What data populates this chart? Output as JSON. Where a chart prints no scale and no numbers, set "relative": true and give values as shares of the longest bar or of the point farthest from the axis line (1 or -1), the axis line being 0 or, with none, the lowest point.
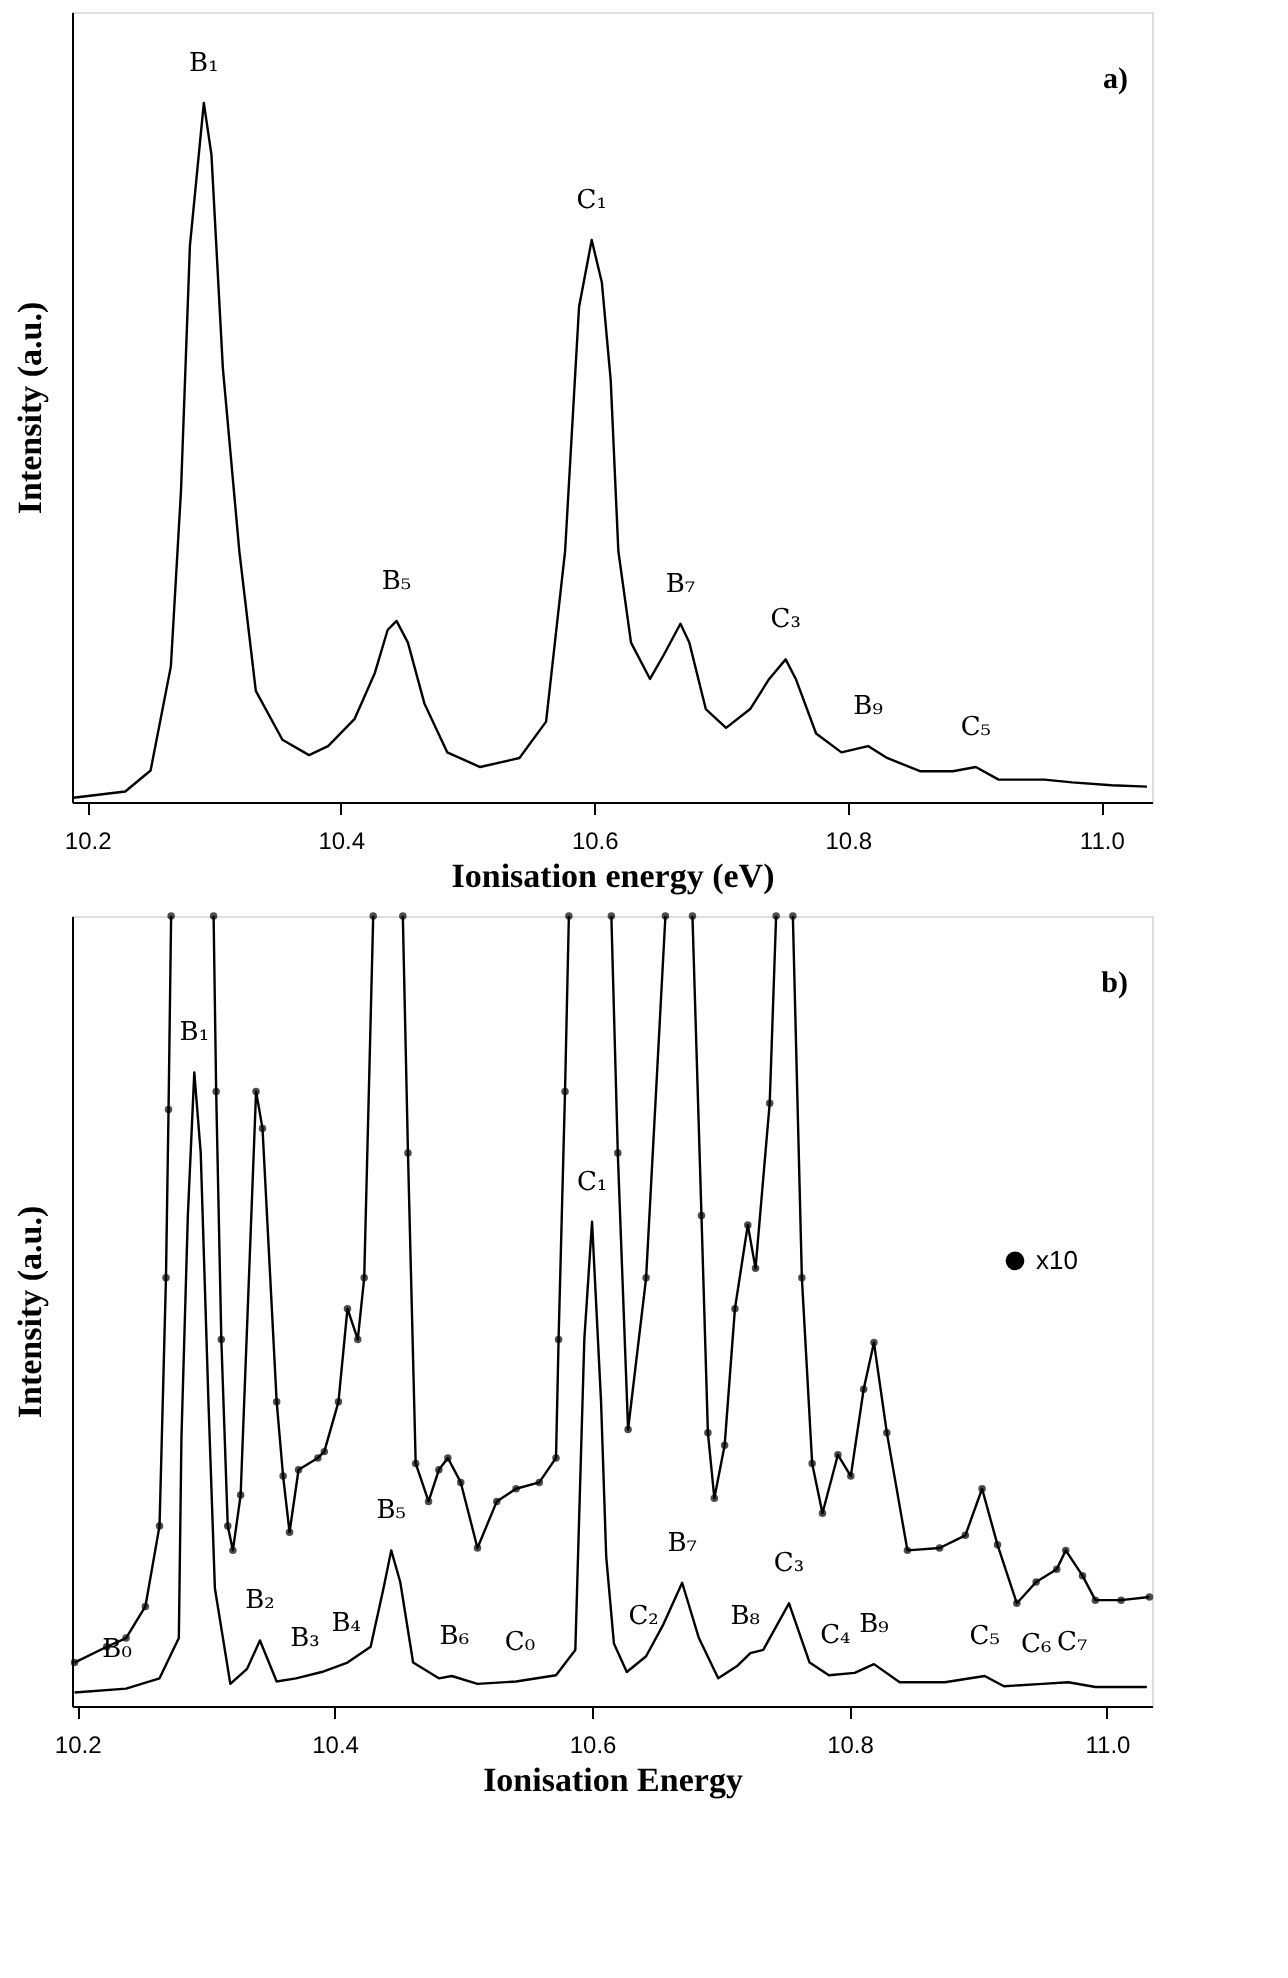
{
  "chart_data": [
    {
      "type": "line",
      "xlabel": "Ionisation energy (eV)",
      "ylabel": "Intensity (a.u.)",
      "relative": true,
      "xlim": [
        10.188,
        11.04
      ],
      "xticks": [
        {
          "value": 10.2,
          "label": "10.2"
        },
        {
          "value": 10.4,
          "label": "10.4"
        },
        {
          "value": 10.6,
          "label": "10.6"
        },
        {
          "value": 10.8,
          "label": "10.8"
        },
        {
          "value": 11,
          "label": "11.0"
        }
      ],
      "line_style": "solid",
      "series": [
        {
          "color": "#000000",
          "x": [
            10.189,
            10.23,
            10.25,
            10.266,
            10.274,
            10.281,
            10.292,
            10.298,
            10.307,
            10.32,
            10.333,
            10.354,
            10.375,
            10.39,
            10.411,
            10.427,
            10.437,
            10.444,
            10.453,
            10.466,
            10.484,
            10.51,
            10.541,
            10.562,
            10.577,
            10.588,
            10.598,
            10.606,
            10.613,
            10.619,
            10.629,
            10.644,
            10.655,
            10.668,
            10.675,
            10.688,
            10.704,
            10.723,
            10.738,
            10.751,
            10.759,
            10.775,
            10.795,
            10.816,
            10.831,
            10.857,
            10.883,
            10.901,
            10.919,
            10.955,
            10.977,
            11.008,
            11.036
          ],
          "values": [
            0.006,
            0.015,
            0.045,
            0.194,
            0.446,
            0.795,
            1.0,
            0.926,
            0.621,
            0.359,
            0.159,
            0.089,
            0.067,
            0.08,
            0.119,
            0.185,
            0.246,
            0.259,
            0.228,
            0.141,
            0.071,
            0.05,
            0.063,
            0.115,
            0.359,
            0.708,
            0.804,
            0.743,
            0.603,
            0.359,
            0.228,
            0.176,
            0.211,
            0.255,
            0.228,
            0.133,
            0.106,
            0.133,
            0.176,
            0.204,
            0.176,
            0.098,
            0.071,
            0.08,
            0.063,
            0.044,
            0.044,
            0.05,
            0.032,
            0.032,
            0.028,
            0.024,
            0.022
          ]
        }
      ],
      "annotations": [
        {
          "text": "B₁",
          "x": 10.292,
          "y": 1.0
        },
        {
          "text": "B₅",
          "x": 10.444,
          "y": 0.259
        },
        {
          "text": "C₁",
          "x": 10.598,
          "y": 0.804
        },
        {
          "text": "B₇",
          "x": 10.668,
          "y": 0.255
        },
        {
          "text": "C₃",
          "x": 10.751,
          "y": 0.204
        },
        {
          "text": "B₉",
          "x": 10.816,
          "y": 0.08
        },
        {
          "text": "C₅",
          "x": 10.901,
          "y": 0.05
        },
        "a)"
      ]
    },
    {
      "type": "line",
      "xlabel": "Ionisation Energy",
      "ylabel": "Intensity (a.u.)",
      "relative": true,
      "xlim": [
        10.196,
        11.035
      ],
      "xticks": [
        {
          "value": 10.2,
          "label": "10.2"
        },
        {
          "value": 10.4,
          "label": "10.4"
        },
        {
          "value": 10.6,
          "label": "10.6"
        },
        {
          "value": 10.8,
          "label": "10.8"
        },
        {
          "value": 11,
          "label": "11.0"
        }
      ],
      "legend": "right",
      "line_style": "solid",
      "series": [
        {
          "color": "#000000",
          "x": [
            10.198,
            10.238,
            10.264,
            10.279,
            10.281,
            10.286,
            10.291,
            10.296,
            10.302,
            10.307,
            10.319,
            10.332,
            10.342,
            10.355,
            10.37,
            10.39,
            10.41,
            10.428,
            10.438,
            10.444,
            10.451,
            10.461,
            10.481,
            10.491,
            10.511,
            10.541,
            10.572,
            10.587,
            10.594,
            10.6,
            10.607,
            10.611,
            10.617,
            10.627,
            10.642,
            10.655,
            10.67,
            10.683,
            10.698,
            10.713,
            10.723,
            10.733,
            10.753,
            10.769,
            10.784,
            10.804,
            10.819,
            10.839,
            10.874,
            10.905,
            10.92,
            10.95,
            10.97,
            10.991,
            11.031
          ],
          "values": [
            0.017,
            0.022,
            0.035,
            0.086,
            0.338,
            0.621,
            0.802,
            0.7,
            0.385,
            0.149,
            0.028,
            0.047,
            0.083,
            0.031,
            0.035,
            0.043,
            0.055,
            0.075,
            0.149,
            0.197,
            0.157,
            0.055,
            0.035,
            0.038,
            0.028,
            0.031,
            0.039,
            0.071,
            0.464,
            0.613,
            0.385,
            0.189,
            0.079,
            0.043,
            0.063,
            0.102,
            0.156,
            0.086,
            0.035,
            0.051,
            0.067,
            0.071,
            0.13,
            0.055,
            0.039,
            0.042,
            0.053,
            0.03,
            0.03,
            0.038,
            0.025,
            0.028,
            0.03,
            0.024,
            0.024
          ]
        },
        {
          "name": "x10",
          "color": "#000000",
          "marker": "circle",
          "x": [
            10.198,
            10.223,
            10.238,
            10.253,
            10.264,
            10.269,
            10.271,
            10.273,
            10.29,
            10.306,
            10.308,
            10.312,
            10.317,
            10.321,
            10.327,
            10.339,
            10.344,
            10.355,
            10.36,
            10.365,
            10.372,
            10.387,
            10.392,
            10.403,
            10.41,
            10.418,
            10.423,
            10.43,
            10.441,
            10.453,
            10.457,
            10.463,
            10.473,
            10.481,
            10.488,
            10.498,
            10.511,
            10.526,
            10.541,
            10.559,
            10.572,
            10.574,
            10.579,
            10.582,
            10.6,
            10.615,
            10.62,
            10.628,
            10.642,
            10.657,
            10.667,
            10.678,
            10.685,
            10.69,
            10.695,
            10.703,
            10.711,
            10.721,
            10.727,
            10.738,
            10.743,
            10.75,
            10.756,
            10.763,
            10.771,
            10.779,
            10.791,
            10.801,
            10.811,
            10.819,
            10.829,
            10.845,
            10.87,
            10.89,
            10.903,
            10.915,
            10.93,
            10.945,
            10.961,
            10.968,
            10.981,
            10.991,
            11.011,
            11.033
          ],
          "values": [
            0.055,
            0.075,
            0.086,
            0.126,
            0.228,
            0.542,
            0.755,
            1.0,
            null,
            1.0,
            0.778,
            0.464,
            0.228,
            0.197,
            0.267,
            0.778,
            0.731,
            0.385,
            0.291,
            0.22,
            0.299,
            0.314,
            0.322,
            0.385,
            0.503,
            0.464,
            0.542,
            1.0,
            null,
            1.0,
            0.7,
            0.307,
            0.259,
            0.299,
            0.314,
            0.283,
            0.2,
            0.259,
            0.275,
            0.283,
            0.314,
            0.464,
            0.778,
            1.0,
            null,
            1.0,
            0.7,
            0.35,
            0.542,
            1.0,
            null,
            1.0,
            0.621,
            0.346,
            0.263,
            0.33,
            0.503,
            0.609,
            0.554,
            0.763,
            1.0,
            null,
            1.0,
            0.542,
            0.307,
            0.244,
            0.318,
            0.291,
            0.401,
            0.46,
            0.346,
            0.197,
            0.2,
            0.216,
            0.275,
            0.204,
            0.13,
            0.157,
            0.173,
            0.197,
            0.165,
            0.134,
            0.134,
            0.138
          ]
        }
      ],
      "annotations": [
        {
          "text": "B₀",
          "x": 10.231,
          "y": 0.022
        },
        {
          "text": "B₁",
          "x": 10.291,
          "y": 0.802
        },
        {
          "text": "B₂",
          "x": 10.342,
          "y": 0.083
        },
        {
          "text": "B₃",
          "x": 10.377,
          "y": 0.035
        },
        {
          "text": "B₄",
          "x": 10.409,
          "y": 0.055
        },
        {
          "text": "B₅",
          "x": 10.444,
          "y": 0.197
        },
        {
          "text": "B₆",
          "x": 10.493,
          "y": 0.038
        },
        {
          "text": "C₀",
          "x": 10.544,
          "y": 0.031
        },
        {
          "text": "C₁",
          "x": 10.6,
          "y": 0.613
        },
        {
          "text": "C₂",
          "x": 10.64,
          "y": 0.063
        },
        {
          "text": "B₇",
          "x": 10.67,
          "y": 0.156
        },
        {
          "text": "B₈",
          "x": 10.719,
          "y": 0.063
        },
        {
          "text": "C₃",
          "x": 10.753,
          "y": 0.13
        },
        {
          "text": "C₄",
          "x": 10.789,
          "y": 0.039
        },
        {
          "text": "B₉",
          "x": 10.819,
          "y": 0.053
        },
        {
          "text": "C₅",
          "x": 10.905,
          "y": 0.038
        },
        {
          "text": "C₆",
          "x": 10.945,
          "y": 0.028
        },
        {
          "text": "C₇",
          "x": 10.973,
          "y": 0.03
        },
        "b)"
      ]
    }
  ]
}
